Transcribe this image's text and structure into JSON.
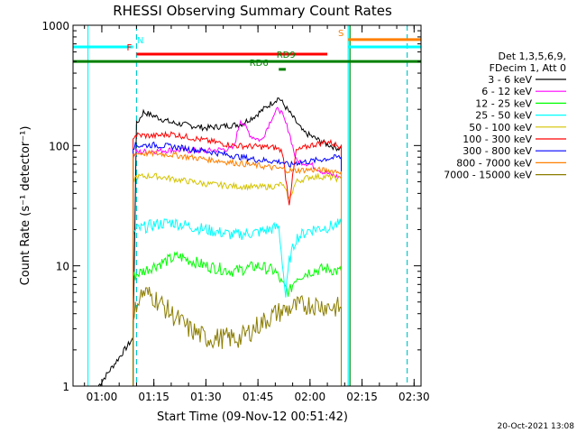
{
  "chart_data": {
    "type": "line",
    "title": "RHESSI Observing Summary Count Rates",
    "xlabel": "Start Time (09-Nov-12 00:51:42)",
    "ylabel": "Count Rate (s⁻¹ detector⁻¹)",
    "y_scale": "log",
    "ylim": [
      1,
      1000
    ],
    "xlim": [
      "00:51:42",
      "02:32:00"
    ],
    "x_ticks": [
      "01:00",
      "01:15",
      "01:30",
      "01:45",
      "02:00",
      "02:15",
      "02:30"
    ],
    "y_ticks": [
      "1",
      "10",
      "100",
      "1000"
    ],
    "legend_header": [
      "Det 1,3,5,6,9,",
      "FDecim 1, Att 0"
    ],
    "legend_position": "right",
    "footer_date": "20-Oct-2021 13:08",
    "series": [
      {
        "name": "3 - 6 keV",
        "color": "#000000",
        "x": [
          "00:59:00",
          "01:09:00",
          "01:10:00",
          "01:12:00",
          "01:20:00",
          "01:30:00",
          "01:40:00",
          "01:44:00",
          "01:48:00",
          "01:51:00",
          "01:54:00",
          "01:58:00",
          "02:04:00",
          "02:08:00",
          "02:09:00"
        ],
        "y": [
          1.0,
          2.5,
          150,
          190,
          155,
          140,
          150,
          175,
          215,
          250,
          190,
          130,
          105,
          95,
          95
        ]
      },
      {
        "name": "6 - 12 keV",
        "color": "#ff00ff",
        "x": [
          "01:09:00",
          "01:10:00",
          "01:20:00",
          "01:30:00",
          "01:38:00",
          "01:40:00",
          "01:43:00",
          "01:46:00",
          "01:49:00",
          "01:51:00",
          "01:52:00",
          "01:54:00",
          "01:56:00",
          "02:00:00",
          "02:04:00",
          "02:08:00",
          "02:09:00"
        ],
        "y": [
          80,
          88,
          92,
          90,
          95,
          165,
          120,
          110,
          170,
          205,
          180,
          130,
          75,
          70,
          60,
          55,
          55
        ]
      },
      {
        "name": "12 - 25 keV",
        "color": "#00ff00",
        "x": [
          "01:09:00",
          "01:10:00",
          "01:15:00",
          "01:22:00",
          "01:30:00",
          "01:38:00",
          "01:45:00",
          "01:50:00",
          "01:52:00",
          "01:54:00",
          "01:56:00",
          "02:00:00",
          "02:05:00",
          "02:08:00",
          "02:09:00"
        ],
        "y": [
          8,
          8.5,
          10,
          12,
          10,
          9,
          10,
          9,
          7,
          6,
          8,
          9,
          9.5,
          9,
          9
        ]
      },
      {
        "name": "25 - 50 keV",
        "color": "#00ffff",
        "x": [
          "01:09:00",
          "01:10:00",
          "01:15:00",
          "01:20:00",
          "01:30:00",
          "01:38:00",
          "01:45:00",
          "01:51:00",
          "01:52:00",
          "01:53:00",
          "01:54:00",
          "01:56:00",
          "02:00:00",
          "02:05:00",
          "02:08:00",
          "02:09:00"
        ],
        "y": [
          18,
          20,
          22,
          23,
          20,
          18,
          19,
          21,
          11,
          5.5,
          11,
          17,
          20,
          21,
          22,
          22
        ]
      },
      {
        "name": "50 - 100 keV",
        "color": "#d4c300",
        "x": [
          "01:09:00",
          "01:10:00",
          "01:15:00",
          "01:20:00",
          "01:30:00",
          "01:38:00",
          "01:45:00",
          "01:50:00",
          "01:52:00",
          "01:54:00",
          "01:56:00",
          "02:00:00",
          "02:05:00",
          "02:08:00",
          "02:09:00"
        ],
        "y": [
          52,
          55,
          56,
          53,
          48,
          46,
          45,
          46,
          48,
          36,
          50,
          55,
          55,
          53,
          53
        ]
      },
      {
        "name": "100 - 300 keV",
        "color": "#ff0000",
        "x": [
          "01:09:00",
          "01:10:00",
          "01:15:00",
          "01:20:00",
          "01:30:00",
          "01:38:00",
          "01:45:00",
          "01:50:00",
          "01:52:00",
          "01:54:00",
          "01:56:00",
          "02:00:00",
          "02:05:00",
          "02:08:00",
          "02:09:00"
        ],
        "y": [
          118,
          122,
          120,
          125,
          110,
          100,
          98,
          96,
          90,
          33,
          90,
          100,
          108,
          100,
          100
        ]
      },
      {
        "name": "300 - 800 keV",
        "color": "#0000ff",
        "x": [
          "01:09:00",
          "01:10:00",
          "01:15:00",
          "01:20:00",
          "01:30:00",
          "01:38:00",
          "01:45:00",
          "01:50:00",
          "01:52:00",
          "01:54:00",
          "01:56:00",
          "02:00:00",
          "02:05:00",
          "02:08:00",
          "02:09:00"
        ],
        "y": [
          98,
          100,
          101,
          98,
          90,
          82,
          76,
          74,
          73,
          68,
          72,
          74,
          78,
          80,
          80
        ]
      },
      {
        "name": "800 - 7000 keV",
        "color": "#ff8000",
        "x": [
          "01:09:00",
          "01:10:00",
          "01:15:00",
          "01:20:00",
          "01:30:00",
          "01:38:00",
          "01:45:00",
          "01:50:00",
          "01:52:00",
          "01:54:00",
          "01:56:00",
          "02:00:00",
          "02:05:00",
          "02:08:00",
          "02:09:00"
        ],
        "y": [
          84,
          86,
          86,
          84,
          77,
          72,
          68,
          65,
          64,
          62,
          62,
          63,
          62,
          61,
          61
        ]
      },
      {
        "name": "7000 - 15000 keV",
        "color": "#8b7d00",
        "x": [
          "01:09:00",
          "01:10:00",
          "01:12:00",
          "01:15:00",
          "01:20:00",
          "01:25:00",
          "01:30:00",
          "01:35:00",
          "01:40:00",
          "01:45:00",
          "01:50:00",
          "01:55:00",
          "02:00:00",
          "02:05:00",
          "02:08:00",
          "02:09:00"
        ],
        "y": [
          3.0,
          5.0,
          6.0,
          5.5,
          4.0,
          3.0,
          2.5,
          2.5,
          2.5,
          3.2,
          4.0,
          4.5,
          4.8,
          4.6,
          4.5,
          4.5
        ]
      }
    ],
    "vlines_cyan": [
      "00:56:00",
      "02:11:00"
    ],
    "vlines_cyan_dashed": [
      "01:10:00",
      "02:28:00"
    ],
    "vline_green": "02:11:00",
    "bars": [
      {
        "label": "N",
        "color": "#00ffff",
        "segments": [
          [
            "00:51:42",
            "01:09:00"
          ],
          [
            "02:11:00",
            "02:32:00"
          ]
        ],
        "level": 660
      },
      {
        "label": "F",
        "color": "#ff0000",
        "segments": [
          [
            "01:10:00",
            "02:05:00"
          ]
        ],
        "level": 575
      },
      {
        "label": "S",
        "color": "#ff8000",
        "segments": [
          [
            "02:11:00",
            "02:32:00"
          ]
        ],
        "level": 760
      },
      {
        "label": "RD9",
        "color": "#008000",
        "segments": [
          [
            "00:51:42",
            "02:32:00"
          ]
        ],
        "level": 500
      },
      {
        "label": "RD6",
        "color": "#008000",
        "segments": [
          [
            "01:51:00",
            "01:53:00"
          ]
        ],
        "level": 430
      }
    ]
  }
}
